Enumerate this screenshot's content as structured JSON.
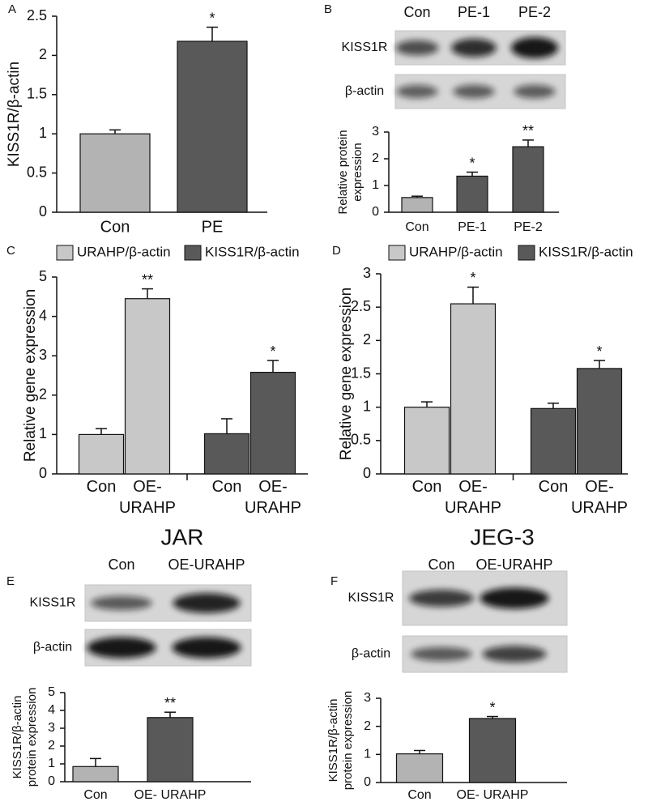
{
  "chart_data": [
    {
      "panel": "A",
      "type": "bar",
      "ylabel": "KISS1R/β-actin",
      "categories": [
        "Con",
        "PE"
      ],
      "values": [
        1.0,
        2.18
      ],
      "errors": [
        0.05,
        0.18
      ],
      "significance": [
        null,
        "*"
      ],
      "colors": [
        "#b3b3b3",
        "#595959"
      ],
      "ylim": [
        0,
        2.5
      ],
      "yticks": [
        0,
        0.5,
        1,
        1.5,
        2,
        2.5
      ]
    },
    {
      "panel": "B",
      "type": "bar",
      "ylabel": "Relative protein expression",
      "categories": [
        "Con",
        "PE-1",
        "PE-2"
      ],
      "values": [
        0.55,
        1.35,
        2.45
      ],
      "errors": [
        0.05,
        0.15,
        0.25
      ],
      "significance": [
        null,
        "*",
        "**"
      ],
      "colors": [
        "#b3b3b3",
        "#595959",
        "#595959"
      ],
      "ylim": [
        0,
        3
      ],
      "yticks": [
        0,
        1,
        2,
        3
      ]
    },
    {
      "panel": "C",
      "type": "grouped-bar",
      "subtitle": "JAR",
      "ylabel": "Relative gene expression",
      "categories": [
        "Con",
        "OE- URAHP",
        "Con",
        "OE- URAHP"
      ],
      "series": [
        {
          "name": "URAHP/β-actin",
          "color": "#c8c8c8",
          "values": [
            1.0,
            4.45,
            null,
            null
          ],
          "errors": [
            0.15,
            0.25,
            null,
            null
          ],
          "significance": [
            null,
            "**",
            null,
            null
          ]
        },
        {
          "name": "KISS1R/β-actin",
          "color": "#595959",
          "values": [
            null,
            null,
            1.02,
            2.58
          ],
          "errors": [
            null,
            null,
            0.38,
            0.3
          ],
          "significance": [
            null,
            null,
            null,
            "*"
          ]
        }
      ],
      "ylim": [
        0,
        5
      ],
      "yticks": [
        0,
        1,
        2,
        3,
        4,
        5
      ]
    },
    {
      "panel": "D",
      "type": "grouped-bar",
      "subtitle": "JEG-3",
      "ylabel": "Relative gene expression",
      "categories": [
        "Con",
        "OE- URAHP",
        "Con",
        "OE- URAHP"
      ],
      "series": [
        {
          "name": "URAHP/β-actin",
          "color": "#c8c8c8",
          "values": [
            1.0,
            2.55,
            null,
            null
          ],
          "errors": [
            0.08,
            0.25,
            null,
            null
          ],
          "significance": [
            null,
            "*",
            null,
            null
          ]
        },
        {
          "name": "KISS1R/β-actin",
          "color": "#595959",
          "values": [
            null,
            null,
            0.98,
            1.58
          ],
          "errors": [
            null,
            null,
            0.08,
            0.12
          ],
          "significance": [
            null,
            null,
            null,
            "*"
          ]
        }
      ],
      "ylim": [
        0,
        3
      ],
      "yticks": [
        0,
        0.5,
        1,
        1.5,
        2,
        2.5,
        3
      ]
    },
    {
      "panel": "E",
      "type": "bar",
      "ylabel": "KISS1R/β-actin protein expression",
      "categories": [
        "Con",
        "OE- URAHP"
      ],
      "values": [
        0.85,
        3.6
      ],
      "errors": [
        0.45,
        0.3
      ],
      "significance": [
        null,
        "**"
      ],
      "colors": [
        "#b3b3b3",
        "#595959"
      ],
      "ylim": [
        0,
        5
      ],
      "yticks": [
        0,
        1,
        2,
        3,
        4,
        5
      ]
    },
    {
      "panel": "F",
      "type": "bar",
      "ylabel": "KISS1R/β-actin protein expression",
      "categories": [
        "Con",
        "OE- URAHP"
      ],
      "values": [
        1.02,
        2.28
      ],
      "errors": [
        0.12,
        0.07
      ],
      "significance": [
        null,
        "*"
      ],
      "colors": [
        "#b3b3b3",
        "#595959"
      ],
      "ylim": [
        0,
        3
      ],
      "yticks": [
        0,
        1,
        2,
        3
      ]
    }
  ],
  "blots": [
    {
      "lanes": [
        "Con",
        "PE-1",
        "PE-2"
      ],
      "rows": [
        "KISS1R",
        "β-actin"
      ]
    },
    {
      "lanes": [
        "Con",
        "OE-URAHP"
      ],
      "rows": [
        "KISS1R",
        "β-actin"
      ]
    },
    {
      "lanes": [
        "Con",
        "OE-URAHP"
      ],
      "rows": [
        "KISS1R",
        "β-actin"
      ]
    }
  ]
}
